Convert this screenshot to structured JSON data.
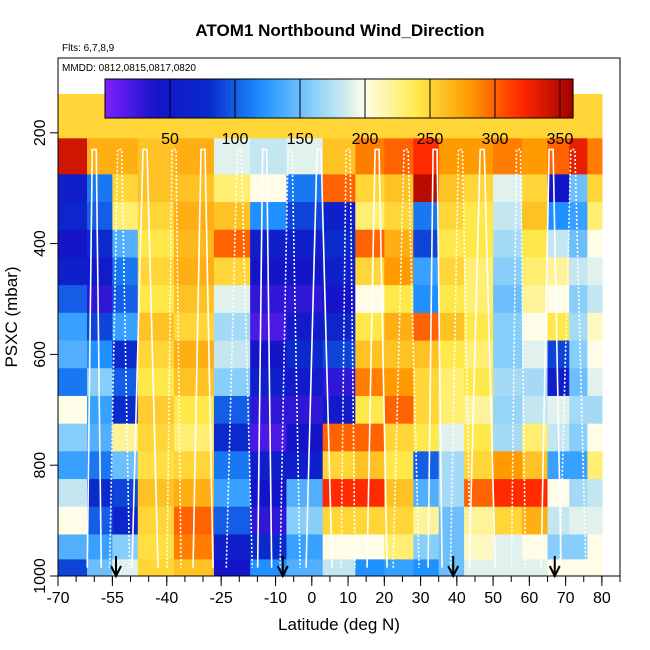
{
  "chart_data": {
    "type": "heatmap",
    "title": "ATOM1 Northbound Wind_Direction",
    "annotations": [
      "Flts: 6,7,8,9",
      "MMDD: 0812,0815,0817,0820"
    ],
    "xlabel": "Latitude (deg N)",
    "ylabel": "PSXC (mbar)",
    "xlim": [
      -70,
      85
    ],
    "ylim": [
      1000,
      65
    ],
    "x_ticks": [
      -70,
      -55,
      -40,
      -25,
      -10,
      0,
      10,
      20,
      30,
      40,
      50,
      60,
      70,
      80
    ],
    "x_tick_labels": [
      "-70",
      "-55",
      "-40",
      "-25",
      "-10",
      "0",
      "10",
      "20",
      "30",
      "40",
      "50",
      "60",
      "70",
      "80"
    ],
    "y_ticks": [
      200,
      400,
      600,
      800,
      1000
    ],
    "y_tick_labels": [
      "200",
      "400",
      "600",
      "800",
      "1000"
    ],
    "colorbar": {
      "range": [
        0,
        360
      ],
      "ticks": [
        50,
        100,
        150,
        200,
        250,
        300,
        350
      ],
      "tick_labels": [
        "50",
        "100",
        "150",
        "200",
        "250",
        "300",
        "350"
      ],
      "colors": [
        "#7f1fff",
        "#1414c8",
        "#0a2acc",
        "#1e90ff",
        "#87cefa",
        "#fffde8",
        "#ffe94a",
        "#ff9a00",
        "#ff2a00",
        "#a00000"
      ]
    },
    "pressure_levels": [
      170,
      250,
      300,
      350,
      400,
      450,
      500,
      550,
      600,
      650,
      700,
      750,
      800,
      850,
      900,
      950,
      990
    ],
    "profiles": [
      {
        "lat": -66,
        "dirs": [
          250,
          340,
          60,
          70,
          40,
          60,
          100,
          130,
          140,
          110,
          200,
          160,
          130,
          180,
          200,
          140,
          90
        ]
      },
      {
        "lat": -58,
        "dirs": [
          250,
          270,
          110,
          100,
          80,
          50,
          30,
          90,
          120,
          160,
          130,
          140,
          110,
          80,
          100,
          130,
          150
        ]
      },
      {
        "lat": -52,
        "dirs": [
          250,
          270,
          250,
          230,
          140,
          110,
          100,
          130,
          80,
          100,
          80,
          220,
          150,
          90,
          70,
          160,
          190
        ]
      },
      {
        "lat": -44,
        "dirs": [
          250,
          260,
          260,
          250,
          240,
          250,
          240,
          260,
          250,
          240,
          255,
          250,
          245,
          260,
          250,
          245,
          250
        ]
      },
      {
        "lat": -32,
        "dirs": [
          250,
          270,
          260,
          270,
          265,
          270,
          260,
          250,
          270,
          260,
          240,
          230,
          250,
          270,
          300,
          290,
          260
        ]
      },
      {
        "lat": -22,
        "dirs": [
          250,
          190,
          230,
          260,
          300,
          250,
          190,
          170,
          180,
          160,
          100,
          80,
          110,
          130,
          100,
          60,
          40
        ]
      },
      {
        "lat": -12,
        "dirs": [
          250,
          180,
          200,
          120,
          60,
          40,
          30,
          20,
          40,
          60,
          30,
          20,
          60,
          40,
          30,
          80,
          120
        ]
      },
      {
        "lat": -2,
        "dirs": [
          250,
          190,
          110,
          90,
          60,
          40,
          30,
          50,
          80,
          50,
          30,
          40,
          60,
          140,
          160,
          130,
          140
        ]
      },
      {
        "lat": 8,
        "dirs": [
          250,
          260,
          300,
          60,
          80,
          60,
          40,
          70,
          90,
          30,
          50,
          300,
          250,
          320,
          250,
          200,
          180
        ]
      },
      {
        "lat": 16,
        "dirs": [
          250,
          290,
          250,
          230,
          300,
          250,
          200,
          240,
          260,
          290,
          240,
          300,
          260,
          320,
          250,
          200,
          120
        ]
      },
      {
        "lat": 24,
        "dirs": [
          250,
          300,
          260,
          250,
          270,
          280,
          240,
          270,
          260,
          280,
          300,
          250,
          240,
          260,
          250,
          230,
          130
        ]
      },
      {
        "lat": 32,
        "dirs": [
          250,
          320,
          350,
          110,
          90,
          130,
          120,
          300,
          260,
          250,
          250,
          240,
          100,
          140,
          220,
          160,
          120
        ]
      },
      {
        "lat": 38,
        "dirs": [
          250,
          280,
          260,
          250,
          240,
          250,
          240,
          260,
          240,
          230,
          230,
          190,
          170,
          170,
          150,
          150,
          150
        ]
      },
      {
        "lat": 46,
        "dirs": [
          250,
          280,
          250,
          240,
          240,
          230,
          230,
          240,
          230,
          240,
          220,
          240,
          250,
          300,
          220,
          210,
          190
        ]
      },
      {
        "lat": 54,
        "dirs": [
          250,
          290,
          190,
          180,
          170,
          160,
          150,
          160,
          160,
          170,
          165,
          170,
          280,
          320,
          250,
          190,
          190
        ]
      },
      {
        "lat": 62,
        "dirs": [
          250,
          280,
          250,
          260,
          240,
          230,
          220,
          200,
          190,
          170,
          180,
          230,
          260,
          320,
          270,
          200,
          190
        ]
      },
      {
        "lat": 68,
        "dirs": [
          250,
          300,
          40,
          120,
          180,
          220,
          200,
          240,
          90,
          60,
          190,
          180,
          130,
          200,
          180,
          160,
          200
        ]
      },
      {
        "lat": 74,
        "dirs": [
          250,
          330,
          150,
          130,
          150,
          180,
          160,
          170,
          160,
          150,
          170,
          160,
          130,
          170,
          190,
          160,
          200
        ]
      },
      {
        "lat": 78,
        "dirs": [
          250,
          290,
          250,
          230,
          200,
          190,
          180,
          210,
          200,
          190,
          170,
          200,
          230,
          180,
          190,
          200,
          200
        ]
      }
    ],
    "white_trace_lats": [
      -60,
      -53,
      -46,
      -38,
      -30,
      -20,
      -13,
      -6,
      2,
      10,
      18,
      26,
      34,
      41,
      47,
      57,
      66,
      72
    ],
    "flight_start_arrows_lat": [
      -54,
      -8,
      39,
      67
    ]
  }
}
